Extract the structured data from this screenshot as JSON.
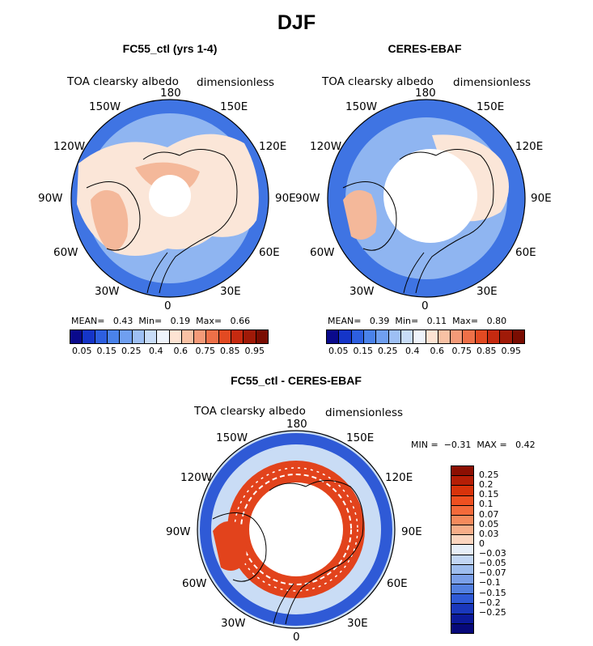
{
  "title": "DJF",
  "panels": [
    {
      "id": "model",
      "title": "FC55_ctl (yrs 1-4)",
      "left_label": "TOA clearsky albedo",
      "right_label": "dimensionless",
      "stats": {
        "mean_label": "MEAN=",
        "mean": "0.43",
        "min_label": "Min=",
        "min": "0.19",
        "max_label": "Max=",
        "max": "0.66"
      }
    },
    {
      "id": "obs",
      "title": "CERES-EBAF",
      "left_label": "TOA clearsky albedo",
      "right_label": "dimensionless",
      "stats": {
        "mean_label": "MEAN=",
        "mean": "0.39",
        "min_label": "Min=",
        "min": "0.11",
        "max_label": "Max=",
        "max": "0.80"
      }
    },
    {
      "id": "diff",
      "title": "FC55_ctl - CERES-EBAF",
      "left_label": "TOA clearsky albedo",
      "right_label": "dimensionless",
      "stats": {
        "min_label": "MIN =",
        "min": "−0.31",
        "max_label": "MAX =",
        "max": "0.42"
      }
    }
  ],
  "longitude_labels": [
    "180",
    "150E",
    "120E",
    "90E",
    "60E",
    "30E",
    "0",
    "30W",
    "60W",
    "90W",
    "120W",
    "150W"
  ],
  "colorbar_abs": {
    "tick_labels": [
      "0.05",
      "0.15",
      "0.25",
      "0.4",
      "0.6",
      "0.75",
      "0.85",
      "0.95"
    ],
    "colors": [
      "#0a0a8c",
      "#1535c8",
      "#2d5fe0",
      "#4a82ea",
      "#6f9ff0",
      "#9dbff4",
      "#c8dcf8",
      "#eef3fb",
      "#fde3d3",
      "#f8c1a4",
      "#f49a78",
      "#ee7048",
      "#e24a22",
      "#c62a10",
      "#a01a08",
      "#7a0d02"
    ]
  },
  "colorbar_diff": {
    "tick_labels": [
      "0.25",
      "0.2",
      "0.15",
      "0.1",
      "0.07",
      "0.05",
      "0.03",
      "0",
      "−0.03",
      "−0.05",
      "−0.07",
      "−0.1",
      "−0.15",
      "−0.2",
      "−0.25"
    ],
    "colors": [
      "#8c0f02",
      "#b51e06",
      "#d8330b",
      "#ef5020",
      "#f46a3a",
      "#f58a5c",
      "#f7ad88",
      "#fbd5bf",
      "#e6eef8",
      "#c2d6f4",
      "#9ebdee",
      "#7a9fe8",
      "#5380e0",
      "#2f5ad6",
      "#1a38bc",
      "#0c1a9a",
      "#07097a"
    ]
  },
  "map_colors": {
    "ocean_abs": "#3f74e3",
    "mid_abs": "#8fb5f1",
    "land_abs": "#fbe6d8",
    "land_warm": "#f4b89a",
    "pole_mask": "#ffffff",
    "diff_ocean": "#c9dcf5",
    "diff_red": "#e2431c",
    "diff_blue": "#2f5ad6"
  }
}
